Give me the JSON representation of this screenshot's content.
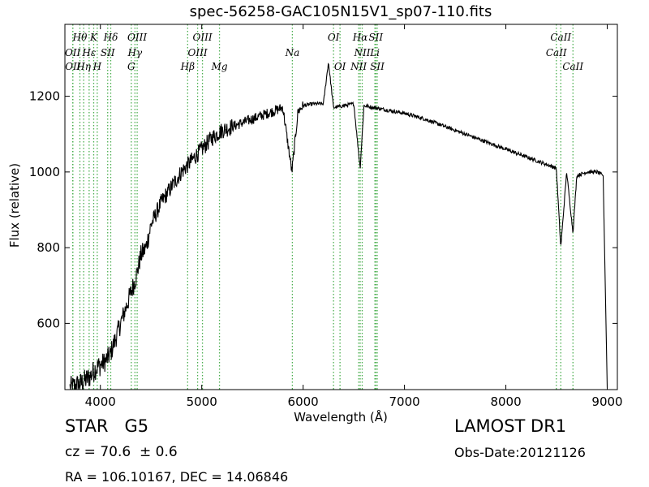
{
  "header": {
    "title": "spec-56258-GAC105N15V1_sp07-110.fits"
  },
  "footer": {
    "star_line": "STAR   G5",
    "survey": "LAMOST DR1",
    "cz": "cz = 70.6  ± 0.6",
    "obs_date": "Obs-Date:20121126",
    "radec": "RA = 106.10167, DEC = 14.06846"
  },
  "chart_data": {
    "type": "line",
    "title": "spec-56258-GAC105N15V1_sp07-110.fits",
    "xlabel": "Wavelength (Å)",
    "ylabel": "Flux (relative)",
    "xlim": [
      3650,
      9100
    ],
    "ylim": [
      425,
      1390
    ],
    "xticks": [
      4000,
      5000,
      6000,
      7000,
      8000,
      9000
    ],
    "yticks": [
      600,
      800,
      1000,
      1200
    ],
    "grid": false,
    "line_color": "#000000",
    "marker_color": "#4caf50",
    "series": [
      {
        "values_x": [
          3700,
          3800,
          3900,
          3950,
          4000,
          4050,
          4100,
          4150,
          4200,
          4250,
          4300,
          4350,
          4400,
          4450,
          4500,
          4600,
          4700,
          4800,
          4900,
          5000,
          5100,
          5200,
          5300,
          5400,
          5500,
          5600,
          5700,
          5800,
          5890,
          5950,
          6000,
          6100,
          6200,
          6250,
          6300,
          6400,
          6500,
          6563,
          6600,
          6700,
          6800,
          6900,
          7000,
          7200,
          7400,
          7600,
          7800,
          8000,
          8200,
          8400,
          8498,
          8542,
          8600,
          8662,
          8700,
          8800,
          8900,
          8960,
          9000
        ],
        "values_y": [
          430,
          440,
          460,
          480,
          490,
          500,
          520,
          560,
          600,
          640,
          680,
          720,
          780,
          800,
          860,
          920,
          960,
          1000,
          1030,
          1060,
          1090,
          1110,
          1120,
          1130,
          1140,
          1150,
          1160,
          1170,
          1000,
          1160,
          1175,
          1180,
          1180,
          1290,
          1170,
          1175,
          1180,
          1010,
          1175,
          1170,
          1165,
          1160,
          1155,
          1140,
          1120,
          1100,
          1080,
          1060,
          1040,
          1020,
          1010,
          800,
          1000,
          840,
          990,
          1000,
          1000,
          990,
          430
        ]
      }
    ],
    "spectral_lines": [
      {
        "label": "Hθ",
        "x": 3798,
        "row": 1
      },
      {
        "label": "OII",
        "x": 3727,
        "row": 2
      },
      {
        "label": "OII",
        "x": 3729,
        "row": 3
      },
      {
        "label": "Hη",
        "x": 3835,
        "row": 3
      },
      {
        "label": "K",
        "x": 3934,
        "row": 1
      },
      {
        "label": "Hε",
        "x": 3889,
        "row": 2
      },
      {
        "label": "SII",
        "x": 4072,
        "row": 2
      },
      {
        "label": "H",
        "x": 3969,
        "row": 3
      },
      {
        "label": "Hδ",
        "x": 4102,
        "row": 1
      },
      {
        "label": "OIII",
        "x": 4363,
        "row": 1
      },
      {
        "label": "Hγ",
        "x": 4341,
        "row": 2
      },
      {
        "label": "G",
        "x": 4305,
        "row": 3
      },
      {
        "label": "OIII",
        "x": 5007,
        "row": 1
      },
      {
        "label": "OIII",
        "x": 4959,
        "row": 2
      },
      {
        "label": "Hβ",
        "x": 4861,
        "row": 3
      },
      {
        "label": "Mg",
        "x": 5175,
        "row": 3
      },
      {
        "label": "Na",
        "x": 5894,
        "row": 2
      },
      {
        "label": "OI",
        "x": 6300,
        "row": 1
      },
      {
        "label": "OI",
        "x": 6364,
        "row": 3
      },
      {
        "label": "Hα",
        "x": 6563,
        "row": 1
      },
      {
        "label": "SII",
        "x": 6717,
        "row": 1
      },
      {
        "label": "NII",
        "x": 6583,
        "row": 2
      },
      {
        "label": "Li",
        "x": 6708,
        "row": 2
      },
      {
        "label": "NII",
        "x": 6548,
        "row": 3
      },
      {
        "label": "SII",
        "x": 6731,
        "row": 3
      },
      {
        "label": "CaII",
        "x": 8542,
        "row": 1
      },
      {
        "label": "CaII",
        "x": 8498,
        "row": 2
      },
      {
        "label": "CaII",
        "x": 8662,
        "row": 3
      }
    ]
  }
}
